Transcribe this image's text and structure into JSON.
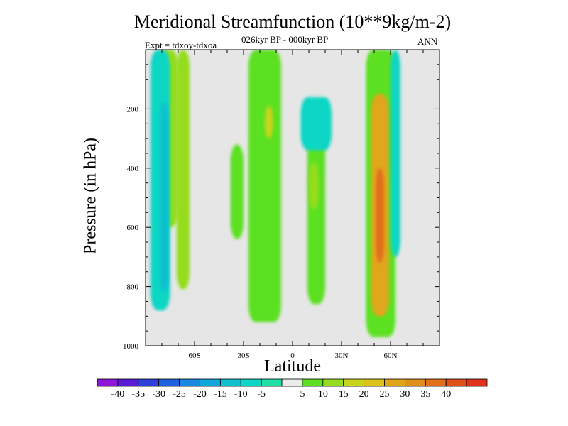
{
  "chart_data": {
    "type": "heatmap",
    "title": "Meridional Streamfunction (10**9kg/m-2)",
    "subtitle": "026kyr BP - 000kyr BP",
    "experiment": "Expt = tdxoy-tdxoa",
    "season": "ANN",
    "xlabel": "Latitude",
    "ylabel": "Pressure (in hPa)",
    "xlim": [
      -90,
      90
    ],
    "ylim": [
      1000,
      0
    ],
    "x_ticks": [
      {
        "value": -60,
        "label": "60S"
      },
      {
        "value": -30,
        "label": "30S"
      },
      {
        "value": 0,
        "label": "0"
      },
      {
        "value": 30,
        "label": "30N"
      },
      {
        "value": 60,
        "label": "60N"
      }
    ],
    "y_ticks": [
      {
        "value": 200,
        "label": "200"
      },
      {
        "value": 400,
        "label": "400"
      },
      {
        "value": 600,
        "label": "600"
      },
      {
        "value": 800,
        "label": "800"
      },
      {
        "value": 1000,
        "label": "1000"
      }
    ],
    "background_color": "#e6e6e6",
    "colorbar": {
      "colors": [
        "#8f16d8",
        "#5a1ad6",
        "#2f3fdc",
        "#1e62e0",
        "#1a88e0",
        "#13a6d8",
        "#10c0d0",
        "#10d6c4",
        "#20e0a8",
        "#ebebeb",
        "#5ce021",
        "#94dc1e",
        "#c8d51a",
        "#dcc21a",
        "#e0a61a",
        "#e08f1a",
        "#e0701a",
        "#e0501a",
        "#e0321a"
      ],
      "labels": [
        "-40",
        "-35",
        "-30",
        "-25",
        "-20",
        "-15",
        "-10",
        "-5",
        "5",
        "10",
        "15",
        "20",
        "25",
        "30",
        "35",
        "40"
      ]
    },
    "field_regions": [
      {
        "level": 10,
        "lat": [
          -83,
          -70
        ],
        "plev": [
          0,
          600
        ]
      },
      {
        "level": 10,
        "lat": [
          -71,
          -63
        ],
        "plev": [
          0,
          810
        ]
      },
      {
        "level": 5,
        "lat": [
          -38,
          -30
        ],
        "plev": [
          320,
          640
        ]
      },
      {
        "level": 5,
        "lat": [
          -27,
          -7
        ],
        "plev": [
          0,
          920
        ]
      },
      {
        "level": 15,
        "lat": [
          -17,
          -12
        ],
        "plev": [
          190,
          300
        ]
      },
      {
        "level": 5,
        "lat": [
          9,
          20
        ],
        "plev": [
          260,
          860
        ]
      },
      {
        "level": 10,
        "lat": [
          10,
          16
        ],
        "plev": [
          380,
          540
        ]
      },
      {
        "level": 5,
        "lat": [
          45,
          63
        ],
        "plev": [
          0,
          970
        ]
      },
      {
        "level": 25,
        "lat": [
          48,
          59
        ],
        "plev": [
          150,
          900
        ]
      },
      {
        "level": 35,
        "lat": [
          51,
          56
        ],
        "plev": [
          400,
          720
        ]
      },
      {
        "level": -10,
        "lat": [
          -87,
          -75
        ],
        "plev": [
          0,
          880
        ]
      },
      {
        "level": -15,
        "lat": [
          -81,
          -76
        ],
        "plev": [
          180,
          820
        ]
      },
      {
        "level": -10,
        "lat": [
          5,
          24
        ],
        "plev": [
          160,
          340
        ]
      },
      {
        "level": -10,
        "lat": [
          60,
          66
        ],
        "plev": [
          0,
          700
        ]
      }
    ]
  }
}
